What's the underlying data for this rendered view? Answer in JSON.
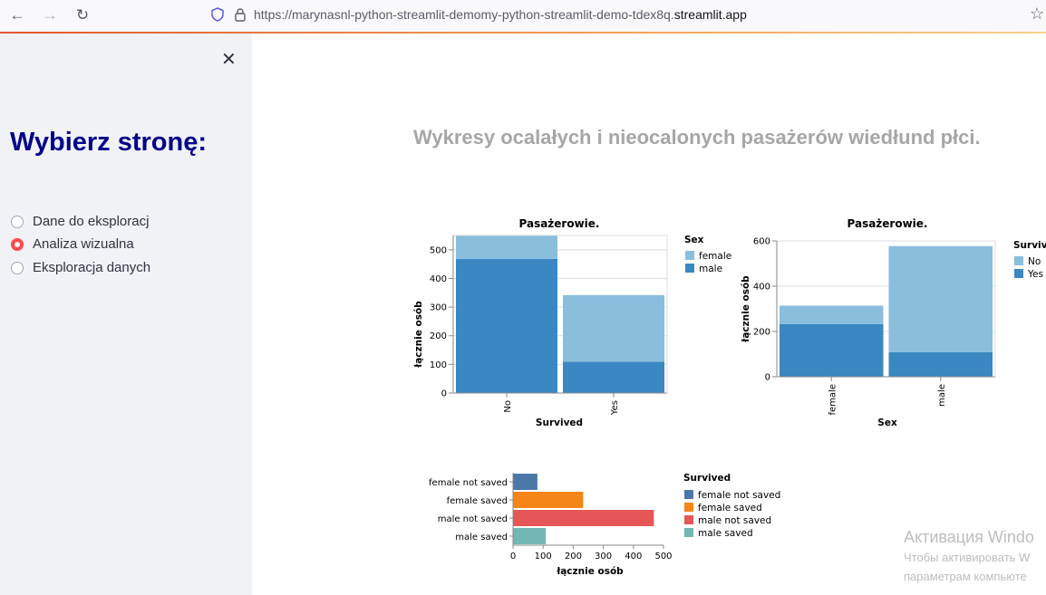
{
  "browser": {
    "url_prefix": "https://marynasnl-python-streamlit-demomy-python-streamlit-demo-tdex8q.",
    "url_domain": "streamlit.app"
  },
  "sidebar": {
    "title": "Wybierz stronę:",
    "options": [
      {
        "label": "Dane do eksploracj",
        "selected": false
      },
      {
        "label": "Analiza wizualna",
        "selected": true
      },
      {
        "label": "Eksploracja danych",
        "selected": false
      }
    ]
  },
  "main": {
    "title": "Wykresy ocalałych i nieocalonych pasażerów wiedłund płci."
  },
  "chart_data": [
    {
      "type": "bar",
      "stacked": true,
      "title": "Pasażerowie.",
      "xlabel": "Survived",
      "ylabel": "łącznie osób",
      "categories": [
        "No",
        "Yes"
      ],
      "yticks": [
        "0",
        "100",
        "200",
        "300",
        "400",
        "500"
      ],
      "ylim": [
        0,
        550
      ],
      "legend_title": "Sex",
      "series": [
        {
          "name": "female",
          "values": [
            81,
            233
          ],
          "color": "#89bedd"
        },
        {
          "name": "male",
          "values": [
            468,
            109
          ],
          "color": "#3a87c1"
        }
      ]
    },
    {
      "type": "bar",
      "stacked": true,
      "title": "Pasażerowie.",
      "xlabel": "Sex",
      "ylabel": "łącznie osób",
      "categories": [
        "female",
        "male"
      ],
      "yticks": [
        "0",
        "200",
        "400",
        "600"
      ],
      "ylim": [
        0,
        600
      ],
      "legend_title": "Survived",
      "series": [
        {
          "name": "No",
          "values": [
            81,
            468
          ],
          "color": "#89bedd"
        },
        {
          "name": "Yes",
          "values": [
            233,
            109
          ],
          "color": "#3a87c1"
        }
      ]
    },
    {
      "type": "bar",
      "orientation": "horizontal",
      "xlabel": "łącznie osób",
      "xticks": [
        "0",
        "100",
        "200",
        "300",
        "400",
        "500"
      ],
      "xlim": [
        0,
        500
      ],
      "legend_title": "Survived",
      "categories": [
        "female not saved",
        "female saved",
        "male not saved",
        "male saved"
      ],
      "values": [
        81,
        233,
        468,
        109
      ],
      "colors": [
        "#4c78a8",
        "#f58518",
        "#e45756",
        "#72b7b2"
      ]
    }
  ],
  "watermark": {
    "line1": "Активация Windo",
    "line2": "Чтобы активировать W",
    "line3": "параметрам компьюте"
  }
}
